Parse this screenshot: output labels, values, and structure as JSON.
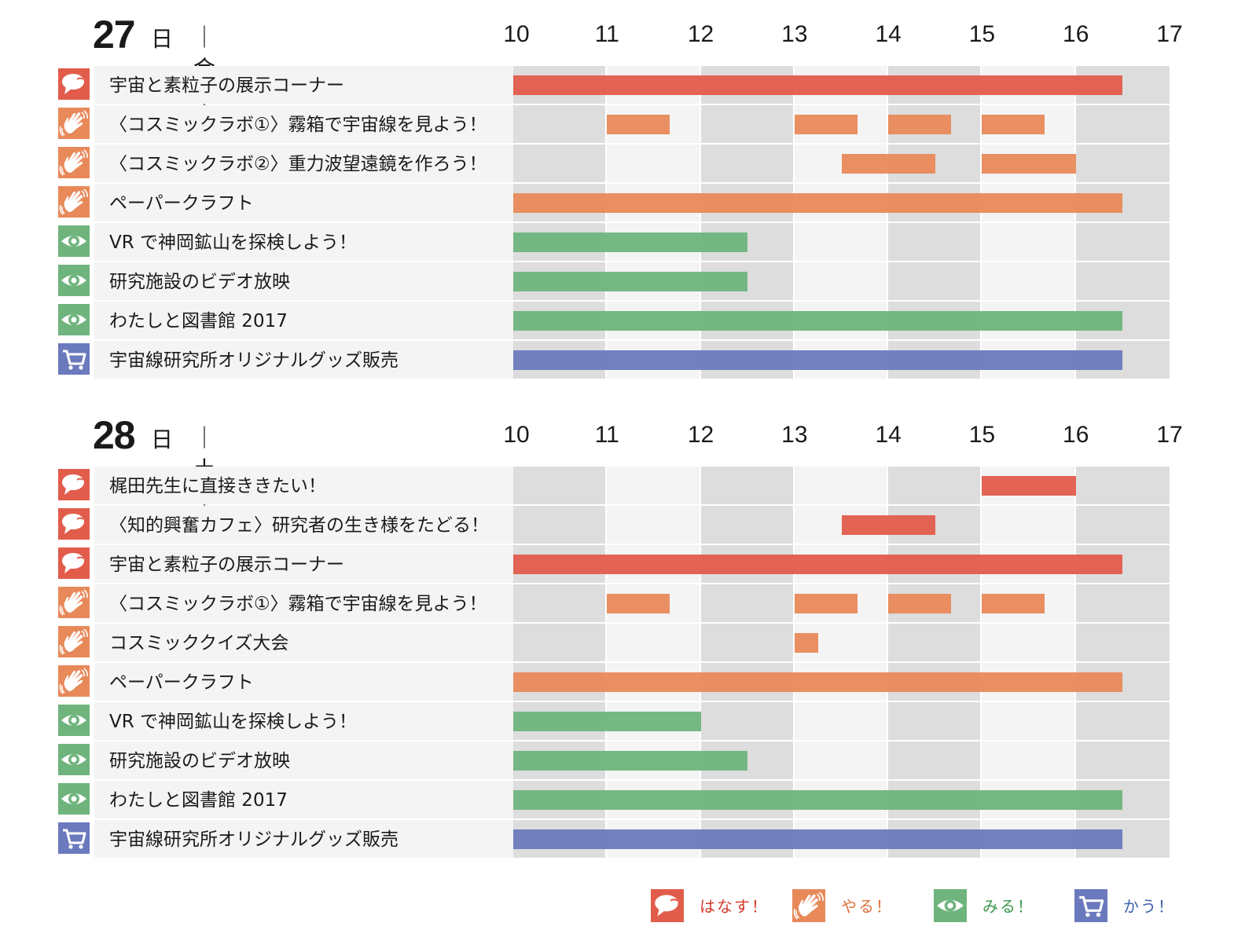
{
  "colors": {
    "talk": "#e25c4b",
    "do": "#e8895a",
    "see": "#6fb47d",
    "buy": "#6b79bd",
    "talk_legend_text": "#d43a2a",
    "do_legend_text": "#e0703b",
    "see_legend_text": "#3c9a52",
    "buy_legend_text": "#3f5fb0",
    "band_dark": "#dcdddc",
    "band_light": "#f3f4f3"
  },
  "chart_data": [
    {
      "type": "bar",
      "orientation": "horizontal-gantt",
      "day": "27",
      "day_unit": "日",
      "weekday": "｜金｜",
      "x_ticks": [
        "10",
        "11",
        "12",
        "13",
        "14",
        "15",
        "16",
        "17"
      ],
      "xlim": [
        10,
        17
      ],
      "rows": [
        {
          "label": "宇宙と素粒子の展示コーナー",
          "category": "talk",
          "icon": "speech-bubble-icon",
          "segments": [
            [
              10,
              16.5
            ]
          ]
        },
        {
          "label": "〈コスミックラボ①〉霧箱で宇宙線を見よう！",
          "category": "do",
          "icon": "hand-icon",
          "segments": [
            [
              11,
              11.67
            ],
            [
              13,
              13.67
            ],
            [
              14,
              14.67
            ],
            [
              15,
              15.67
            ]
          ]
        },
        {
          "label": "〈コスミックラボ②〉重力波望遠鏡を作ろう！",
          "category": "do",
          "icon": "hand-icon",
          "segments": [
            [
              13.5,
              14.5
            ],
            [
              15,
              16
            ]
          ]
        },
        {
          "label": "ペーパークラフト",
          "category": "do",
          "icon": "hand-icon",
          "segments": [
            [
              10,
              16.5
            ]
          ]
        },
        {
          "label": "VR で神岡鉱山を探検しよう！",
          "category": "see",
          "icon": "eye-icon",
          "segments": [
            [
              10,
              12.5
            ]
          ]
        },
        {
          "label": "研究施設のビデオ放映",
          "category": "see",
          "icon": "eye-icon",
          "segments": [
            [
              10,
              12.5
            ]
          ]
        },
        {
          "label": "わたしと図書館 2017",
          "category": "see",
          "icon": "eye-icon",
          "segments": [
            [
              10,
              16.5
            ]
          ]
        },
        {
          "label": "宇宙線研究所オリジナルグッズ販売",
          "category": "buy",
          "icon": "cart-icon",
          "segments": [
            [
              10,
              16.5
            ]
          ]
        }
      ]
    },
    {
      "type": "bar",
      "orientation": "horizontal-gantt",
      "day": "28",
      "day_unit": "日",
      "weekday": "｜土｜",
      "x_ticks": [
        "10",
        "11",
        "12",
        "13",
        "14",
        "15",
        "16",
        "17"
      ],
      "xlim": [
        10,
        17
      ],
      "rows": [
        {
          "label": "梶田先生に直接ききたい！",
          "category": "talk",
          "icon": "speech-bubble-icon",
          "segments": [
            [
              15,
              16
            ]
          ]
        },
        {
          "label": "〈知的興奮カフェ〉研究者の生き様をたどる！",
          "category": "talk",
          "icon": "speech-bubble-icon",
          "segments": [
            [
              13.5,
              14.5
            ]
          ]
        },
        {
          "label": "宇宙と素粒子の展示コーナー",
          "category": "talk",
          "icon": "speech-bubble-icon",
          "segments": [
            [
              10,
              16.5
            ]
          ]
        },
        {
          "label": "〈コスミックラボ①〉霧箱で宇宙線を見よう！",
          "category": "do",
          "icon": "hand-icon",
          "segments": [
            [
              11,
              11.67
            ],
            [
              13,
              13.67
            ],
            [
              14,
              14.67
            ],
            [
              15,
              15.67
            ]
          ]
        },
        {
          "label": "コスミッククイズ大会",
          "category": "do",
          "icon": "hand-icon",
          "segments": [
            [
              13,
              13.25
            ]
          ]
        },
        {
          "label": "ペーパークラフト",
          "category": "do",
          "icon": "hand-icon",
          "segments": [
            [
              10,
              16.5
            ]
          ]
        },
        {
          "label": "VR で神岡鉱山を探検しよう！",
          "category": "see",
          "icon": "eye-icon",
          "segments": [
            [
              10,
              12
            ]
          ]
        },
        {
          "label": "研究施設のビデオ放映",
          "category": "see",
          "icon": "eye-icon",
          "segments": [
            [
              10,
              12.5
            ]
          ]
        },
        {
          "label": "わたしと図書館 2017",
          "category": "see",
          "icon": "eye-icon",
          "segments": [
            [
              10,
              16.5
            ]
          ]
        },
        {
          "label": "宇宙線研究所オリジナルグッズ販売",
          "category": "buy",
          "icon": "cart-icon",
          "segments": [
            [
              10,
              16.5
            ]
          ]
        }
      ]
    }
  ],
  "legend": [
    {
      "category": "talk",
      "icon": "speech-bubble-icon",
      "label": "はなす！"
    },
    {
      "category": "do",
      "icon": "hand-icon",
      "label": "やる！"
    },
    {
      "category": "see",
      "icon": "eye-icon",
      "label": "みる！"
    },
    {
      "category": "buy",
      "icon": "cart-icon",
      "label": "かう！"
    }
  ]
}
